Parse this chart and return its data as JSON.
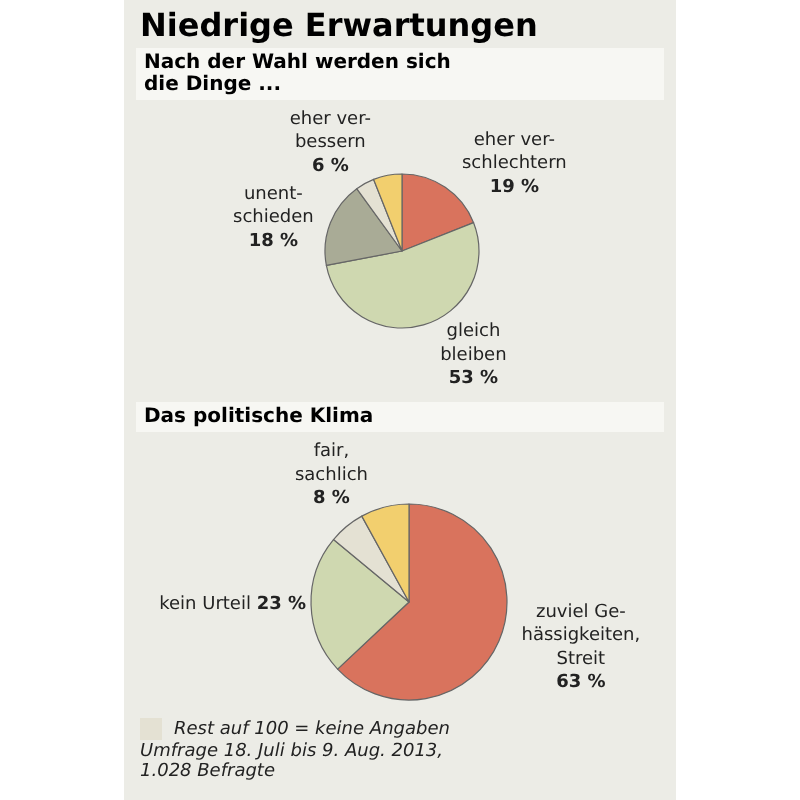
{
  "chart_data": [
    {
      "type": "pie",
      "title": "Niedrige Erwartungen",
      "subtitle": "Nach der Wahl werden sich die Dinge ...",
      "categories": [
        "eher ver-\nschlechtern",
        "gleich\nbleiben",
        "unent-\nschieden",
        null,
        "eher ver-\nbessern"
      ],
      "values": [
        19,
        53,
        18,
        4,
        6
      ],
      "value_labels": [
        "19 %",
        "53 %",
        "18 %",
        null,
        "6 %"
      ],
      "colors": [
        "#d9735d",
        "#cfd8b0",
        "#a9ab96",
        "#e4e1d3",
        "#f2cf6e"
      ]
    },
    {
      "type": "pie",
      "title": "Das politische Klima",
      "categories": [
        "zuviel Ge-\nhässigkeiten,\nStreit",
        "kein Urteil",
        null,
        "fair,\nsachlich"
      ],
      "values": [
        63,
        23,
        6,
        8
      ],
      "value_labels": [
        "63 %",
        "23 %",
        null,
        "8 %"
      ],
      "colors": [
        "#d9735d",
        "#cfd8b0",
        "#e4e1d3",
        "#f2cf6e"
      ],
      "annotations": [
        "Rest auf 100 = keine Angaben",
        "Umfrage 18. Juli bis 9. Aug. 2013,\n1.028 Befragte"
      ]
    }
  ]
}
